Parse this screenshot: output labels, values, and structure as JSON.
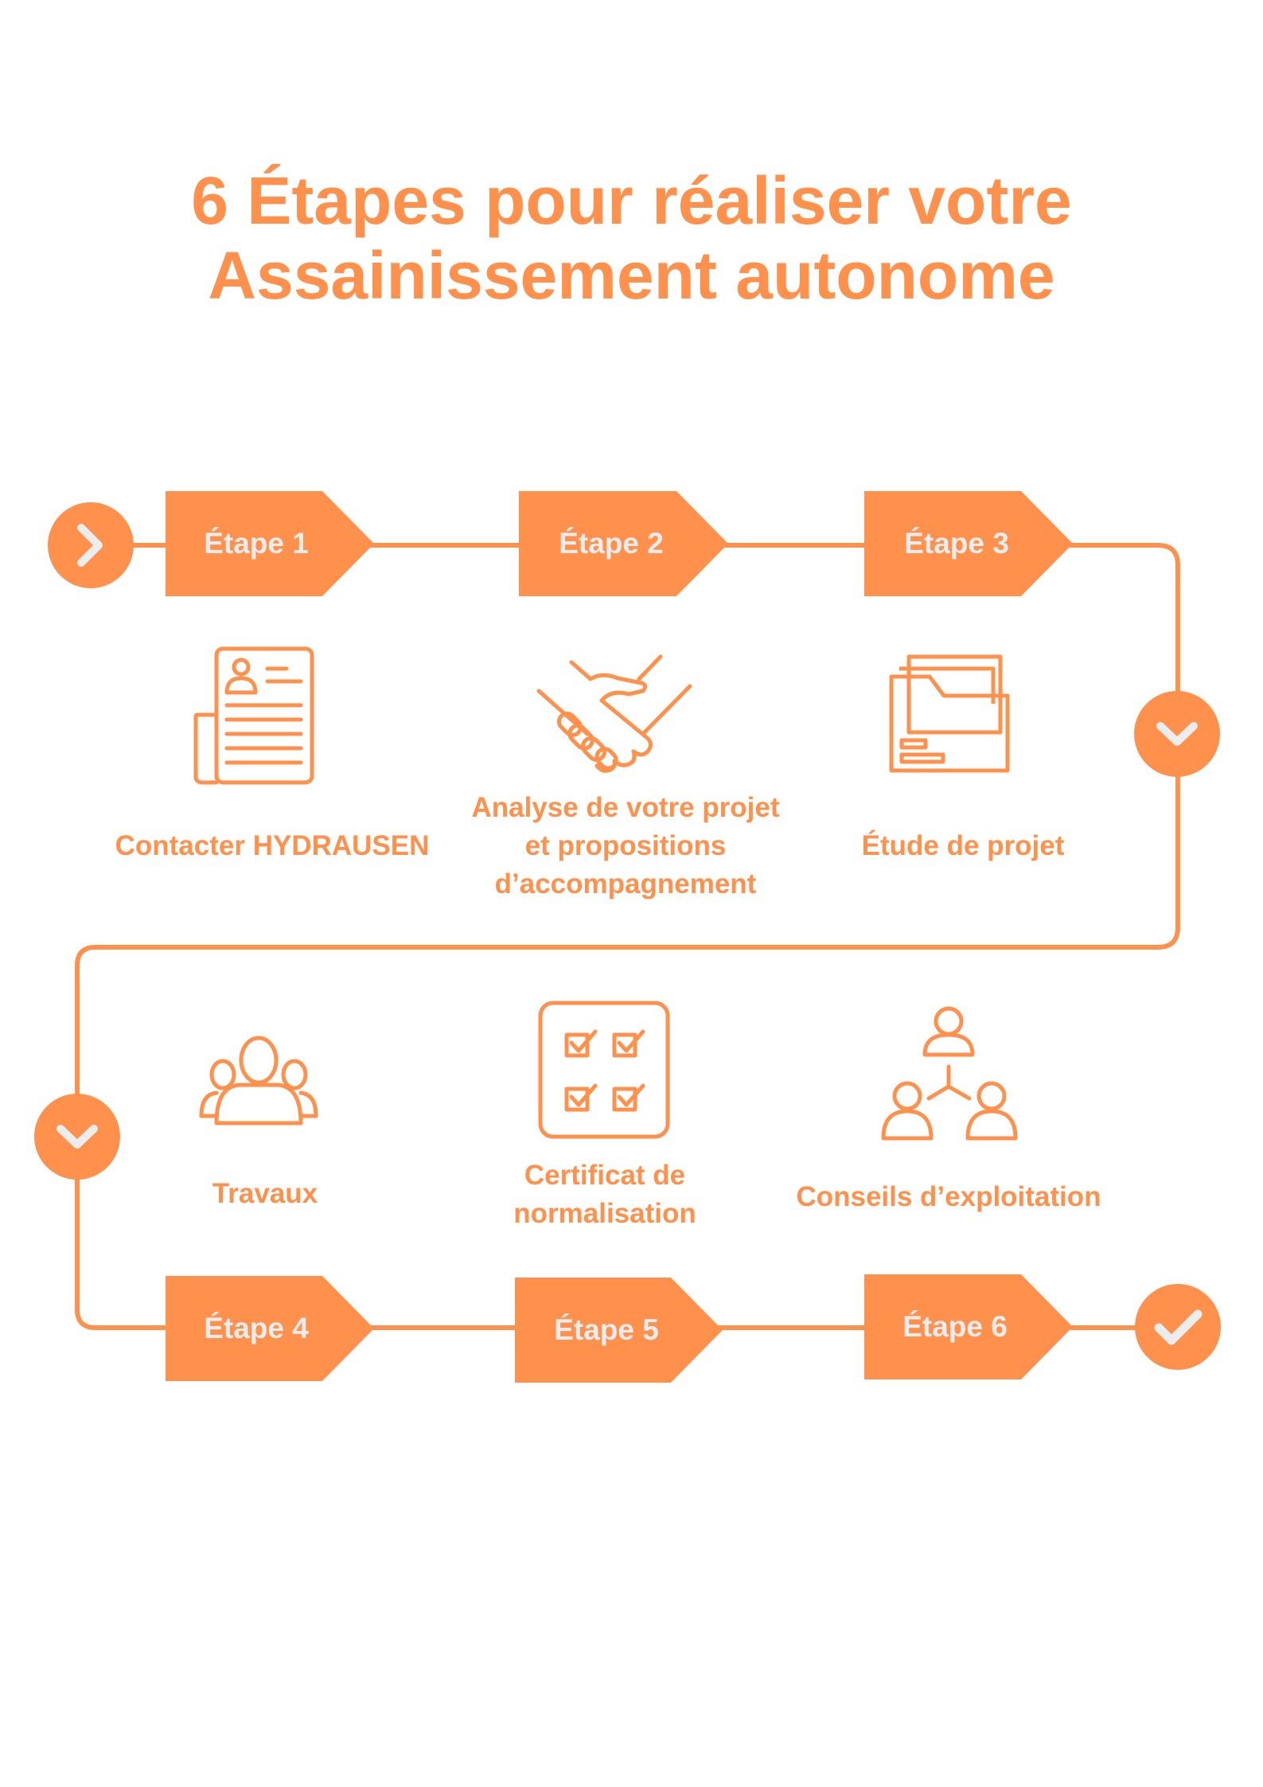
{
  "title": {
    "line1": "6 Étapes pour réaliser votre",
    "line2": "Assainissement autonome"
  },
  "accent_color": "#FF914D",
  "steps": [
    {
      "label": "Étape 1",
      "text": "Contacter HYDRAUSEN",
      "icon": "resume-icon"
    },
    {
      "label": "Étape 2",
      "text": "Analyse de votre projet et propositions d’accompagnement",
      "icon": "handshake-icon"
    },
    {
      "label": "Étape 3",
      "text": "Étude de projet",
      "icon": "folder-icon"
    },
    {
      "label": "Étape 4",
      "text": "Travaux",
      "icon": "team-icon"
    },
    {
      "label": "Étape 5",
      "text": "Certificat de normalisation",
      "icon": "checklist-icon"
    },
    {
      "label": "Étape 6",
      "text": "Conseils d’exploitation",
      "icon": "network-people-icon"
    }
  ],
  "markers": {
    "start": "chevron-right-icon",
    "turn_right": "chevron-down-icon",
    "turn_left": "chevron-down-icon",
    "end": "check-icon"
  }
}
